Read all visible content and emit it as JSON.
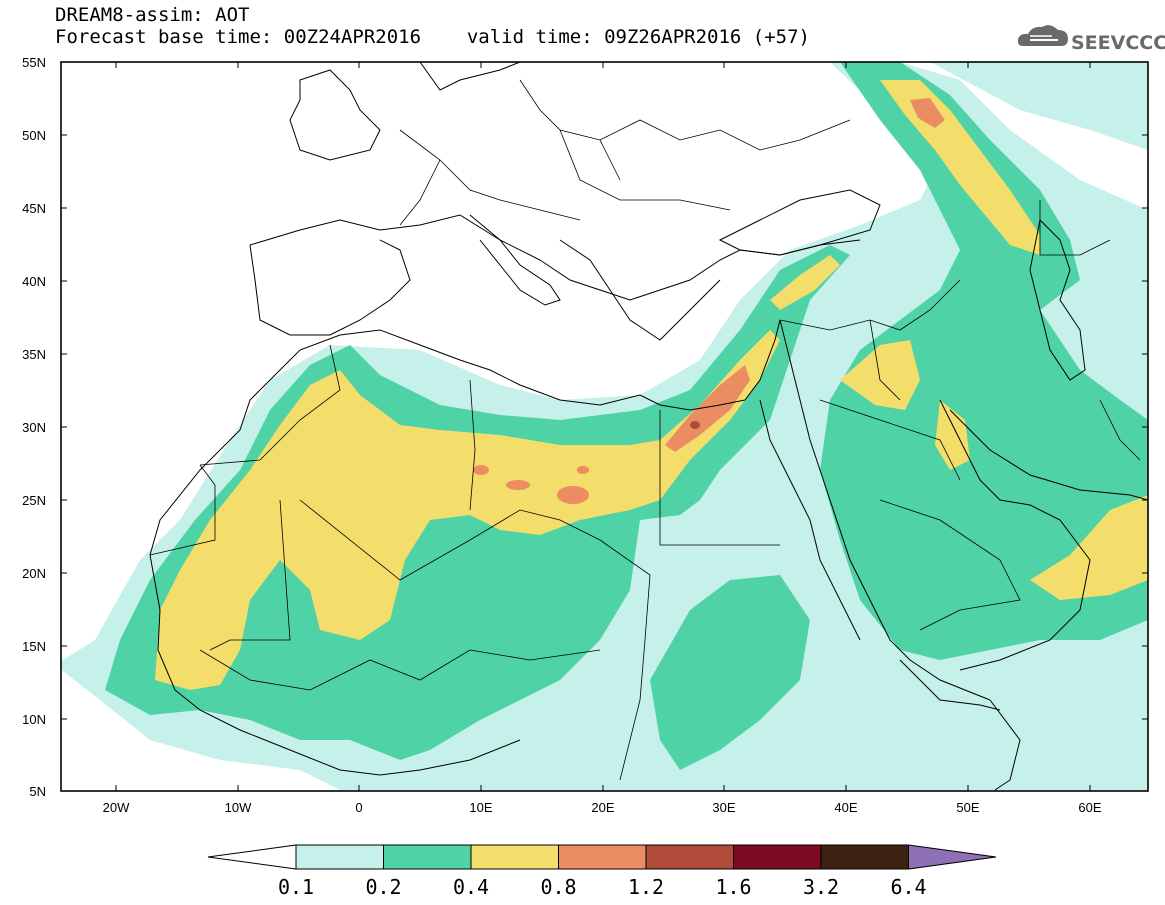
{
  "header": {
    "title": "DREAM8-assim: AOT",
    "base_time_label": "Forecast base time: 00Z24APR2016",
    "valid_time_label": "valid time: 09Z26APR2016 (+57)"
  },
  "logo": {
    "text": "SEEVCCC",
    "icon": "cloud-icon"
  },
  "axes": {
    "lat_ticks": [
      "55N",
      "50N",
      "45N",
      "40N",
      "35N",
      "30N",
      "25N",
      "20N",
      "15N",
      "10N",
      "5N"
    ],
    "lon_ticks": [
      "20W",
      "10W",
      "0",
      "10E",
      "20E",
      "30E",
      "40E",
      "50E",
      "60E"
    ]
  },
  "colorbar": {
    "labels": [
      "0.1",
      "0.2",
      "0.4",
      "0.8",
      "1.2",
      "1.6",
      "3.2",
      "6.4"
    ],
    "colors": [
      "#ffffff",
      "#c6f0ea",
      "#4fd2a6",
      "#f3de6c",
      "#ec8c62",
      "#b24c3a",
      "#7d0a22",
      "#3d2212",
      "#8e70b4"
    ]
  },
  "map_colors": {
    "c01": "#c6f0ea",
    "c02": "#4fd2a6",
    "c04": "#f3de6c",
    "c08": "#ec8c62",
    "c12": "#b24c3a"
  }
}
